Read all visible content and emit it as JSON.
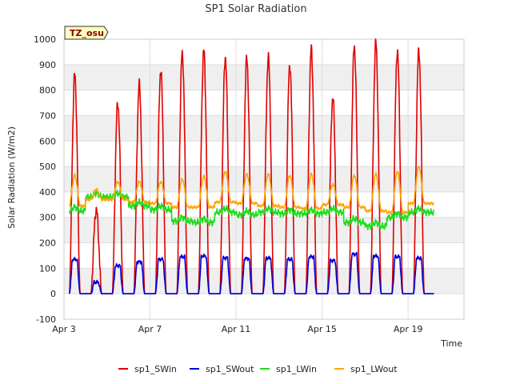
{
  "chart_data": {
    "type": "line",
    "title": "SP1 Solar Radiation",
    "xlabel": "Time",
    "ylabel": "Solar Radiation (W/m2)",
    "site_tag": "TZ_osu",
    "xlim": [
      0,
      18.6
    ],
    "ylim": [
      -100,
      1000
    ],
    "yticks": [
      -100,
      0,
      100,
      200,
      300,
      400,
      500,
      600,
      700,
      800,
      900,
      1000
    ],
    "xticks": [
      {
        "day": 0,
        "label": "Apr 3"
      },
      {
        "day": 4,
        "label": "Apr 7"
      },
      {
        "day": 8,
        "label": "Apr 11"
      },
      {
        "day": 12,
        "label": "Apr 15"
      },
      {
        "day": 16,
        "label": "Apr 19"
      }
    ],
    "grid": true,
    "legend": "bottom",
    "series": [
      {
        "name": "sp1_SWin",
        "color": "#e00000",
        "daily_peaks": [
          860,
          330,
          750,
          820,
          880,
          945,
          955,
          930,
          925,
          930,
          900,
          960,
          770,
          975,
          985,
          955,
          955
        ]
      },
      {
        "name": "sp1_SWout",
        "color": "#0000dd",
        "daily_peaks": [
          135,
          45,
          110,
          125,
          135,
          145,
          148,
          140,
          138,
          140,
          135,
          145,
          130,
          155,
          148,
          145,
          140
        ]
      },
      {
        "name": "sp1_LWin",
        "color": "#22dd22",
        "daily_means": [
          325,
          380,
          380,
          345,
          330,
          285,
          280,
          320,
          310,
          320,
          315,
          315,
          320,
          280,
          265,
          300,
          320
        ]
      },
      {
        "name": "sp1_LWout",
        "color": "#ffa500",
        "daily_peaks": [
          465,
          410,
          440,
          440,
          440,
          450,
          460,
          480,
          470,
          470,
          465,
          470,
          430,
          465,
          470,
          480,
          500
        ],
        "night_levels": [
          345,
          370,
          370,
          360,
          355,
          340,
          340,
          360,
          355,
          345,
          340,
          335,
          350,
          340,
          325,
          320,
          355
        ]
      }
    ]
  }
}
